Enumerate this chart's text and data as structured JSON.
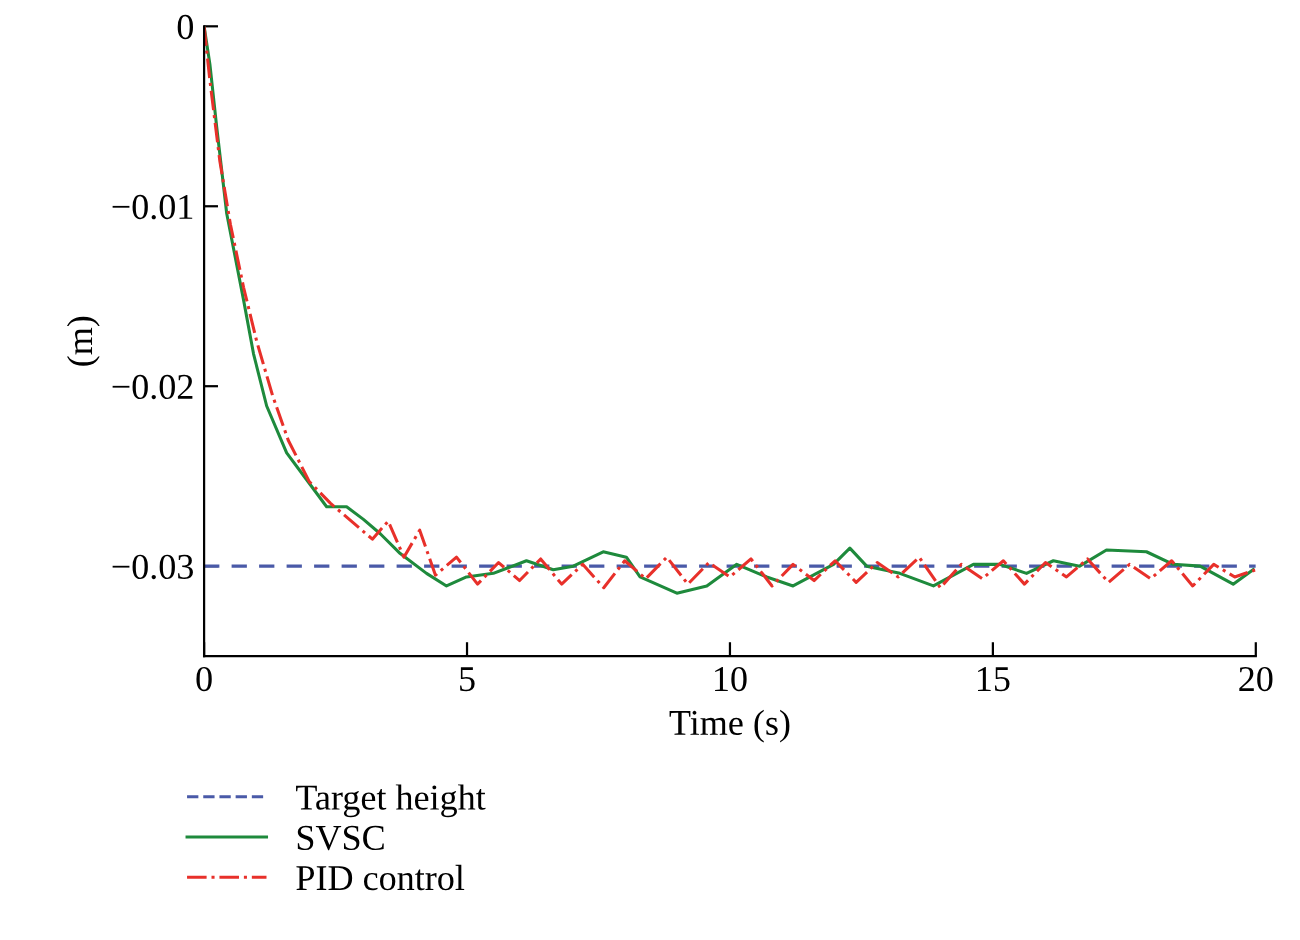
{
  "chart_data": {
    "type": "line",
    "xlabel": "Time (s)",
    "ylabel": "(m)",
    "xlim": [
      0,
      20
    ],
    "ylim": [
      -0.035,
      0
    ],
    "xticks": [
      0,
      5,
      10,
      15,
      20
    ],
    "yticks": [
      {
        "value": 0,
        "label": "0"
      },
      {
        "value": -0.01,
        "label": "−0.01"
      },
      {
        "value": -0.02,
        "label": "−0.02"
      },
      {
        "value": -0.03,
        "label": "−0.03"
      }
    ],
    "grid": false,
    "legend": "bottom left",
    "series": [
      {
        "name": "Target height",
        "color": "#4a5aa8",
        "line_style": "dashed",
        "x": [
          0,
          20
        ],
        "values": [
          -0.03,
          -0.03
        ]
      },
      {
        "name": "SVSC",
        "color": "#1e8a3c",
        "line_style": "solid",
        "x": [
          0,
          0.11,
          0.24,
          0.43,
          0.75,
          0.94,
          1.19,
          1.57,
          1.95,
          2.33,
          2.71,
          3.03,
          3.35,
          3.73,
          4.23,
          4.61,
          4.99,
          5.5,
          6.13,
          6.64,
          7.02,
          7.59,
          8.03,
          8.29,
          8.99,
          9.56,
          10.13,
          10.7,
          11.2,
          11.97,
          12.28,
          12.6,
          13.23,
          13.87,
          14.63,
          15.13,
          15.64,
          16.15,
          16.65,
          17.16,
          17.92,
          18.43,
          18.94,
          19.57,
          19.95
        ],
        "values": [
          0,
          -0.0021,
          -0.0056,
          -0.0104,
          -0.0152,
          -0.0182,
          -0.0211,
          -0.0237,
          -0.0252,
          -0.0267,
          -0.0267,
          -0.0274,
          -0.0282,
          -0.0293,
          -0.0304,
          -0.0311,
          -0.0306,
          -0.0304,
          -0.0297,
          -0.0302,
          -0.03,
          -0.0292,
          -0.0295,
          -0.0306,
          -0.0315,
          -0.0311,
          -0.0299,
          -0.0306,
          -0.0311,
          -0.0299,
          -0.029,
          -0.03,
          -0.0304,
          -0.0311,
          -0.0299,
          -0.0299,
          -0.0304,
          -0.0297,
          -0.03,
          -0.0291,
          -0.0292,
          -0.0299,
          -0.03,
          -0.031,
          -0.0302
        ]
      },
      {
        "name": "PID control",
        "color": "#e8302a",
        "line_style": "dashdot",
        "x": [
          0,
          0.11,
          0.3,
          0.5,
          0.75,
          1.0,
          1.3,
          1.6,
          2.0,
          2.4,
          2.8,
          3.2,
          3.5,
          3.8,
          4.1,
          4.4,
          4.8,
          5.2,
          5.6,
          6.0,
          6.4,
          6.8,
          7.2,
          7.6,
          8.0,
          8.4,
          8.8,
          9.2,
          9.6,
          10.0,
          10.4,
          10.8,
          11.2,
          11.6,
          12.0,
          12.4,
          12.8,
          13.2,
          13.6,
          14.0,
          14.4,
          14.8,
          15.2,
          15.6,
          16.0,
          16.4,
          16.8,
          17.2,
          17.6,
          18.0,
          18.4,
          18.8,
          19.2,
          19.6,
          20.0
        ],
        "values": [
          0,
          -0.003,
          -0.0075,
          -0.011,
          -0.0145,
          -0.0175,
          -0.0205,
          -0.023,
          -0.0253,
          -0.0265,
          -0.0275,
          -0.0285,
          -0.0275,
          -0.0295,
          -0.028,
          -0.0305,
          -0.0295,
          -0.031,
          -0.0298,
          -0.0308,
          -0.0296,
          -0.031,
          -0.0299,
          -0.0312,
          -0.0297,
          -0.0307,
          -0.0295,
          -0.031,
          -0.0298,
          -0.0306,
          -0.0296,
          -0.0311,
          -0.0299,
          -0.0308,
          -0.0297,
          -0.0309,
          -0.0298,
          -0.0306,
          -0.0295,
          -0.0312,
          -0.0299,
          -0.0307,
          -0.0297,
          -0.031,
          -0.0298,
          -0.0306,
          -0.0296,
          -0.0309,
          -0.0299,
          -0.0307,
          -0.0297,
          -0.0311,
          -0.0299,
          -0.0306,
          -0.0302
        ]
      }
    ]
  }
}
